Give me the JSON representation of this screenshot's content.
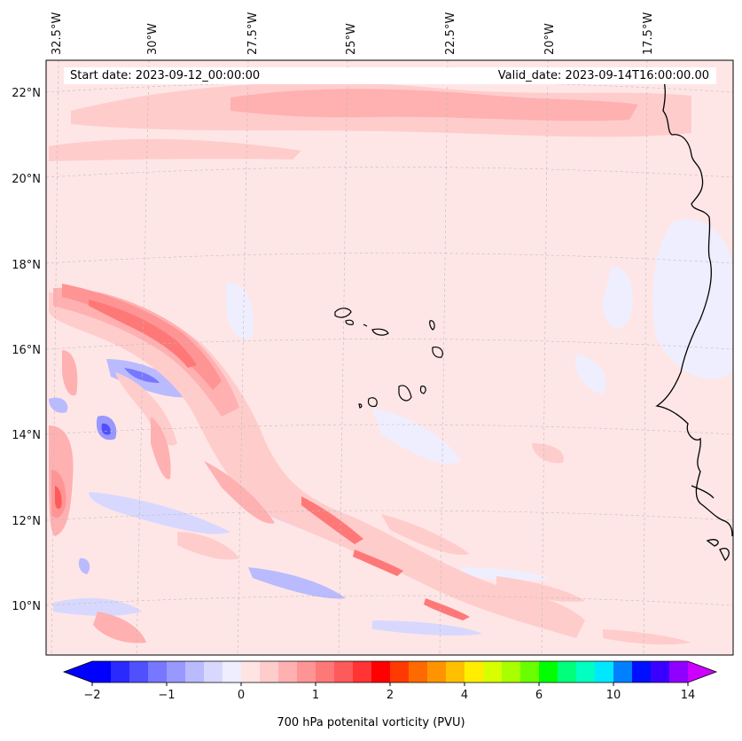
{
  "header": {
    "start_date": "Start date: 2023-09-12_00:00:00",
    "valid_date": "Valid_date: 2023-09-14T16:00:00.00"
  },
  "longitude_labels": [
    "32.5°W",
    "30°W",
    "27.5°W",
    "25°W",
    "22.5°W",
    "20°W",
    "17.5°W"
  ],
  "latitude_labels": [
    "22°N",
    "20°N",
    "18°N",
    "16°N",
    "14°N",
    "12°N",
    "10°N"
  ],
  "colorbar": {
    "label": "700 hPa potenital vorticity (PVU)",
    "tick_labels": [
      "−2",
      "−1",
      "0",
      "1",
      "2",
      "4",
      "6",
      "10",
      "14"
    ],
    "colors": [
      "#0000ff",
      "#2a2aff",
      "#5050ff",
      "#7777ff",
      "#9898ff",
      "#babaff",
      "#d8d8ff",
      "#eeeeff",
      "#ffe4e4",
      "#ffcccc",
      "#ffb0b0",
      "#ff9494",
      "#ff7878",
      "#ff5a5a",
      "#ff3434",
      "#ff0000",
      "#ff3a00",
      "#ff6a00",
      "#ff9400",
      "#ffc000",
      "#ffee00",
      "#d8ff00",
      "#a8ff00",
      "#6aff00",
      "#00ff00",
      "#00ff7a",
      "#00ffc0",
      "#00e8ff",
      "#0080ff",
      "#0010ff",
      "#3a00ff",
      "#9000ff"
    ],
    "extend_low": "#0000ff",
    "extend_high": "#cc00ff"
  },
  "map": {
    "background": "#ffe6e6",
    "coastline_color": "#000000",
    "extent": {
      "lon": [
        -33,
        -15
      ],
      "lat": [
        9,
        23
      ]
    },
    "features": {
      "positive_bands": [
        {
          "name": "northern-pv-band",
          "level": 1
        },
        {
          "name": "diagonal-pv-streak",
          "level": 2
        },
        {
          "name": "western-pv-max",
          "level": 2
        },
        {
          "name": "southern-pv-filaments",
          "level": 2
        }
      ],
      "negative_bands": [
        {
          "name": "negative-pv-patches",
          "level": -1
        }
      ]
    }
  }
}
